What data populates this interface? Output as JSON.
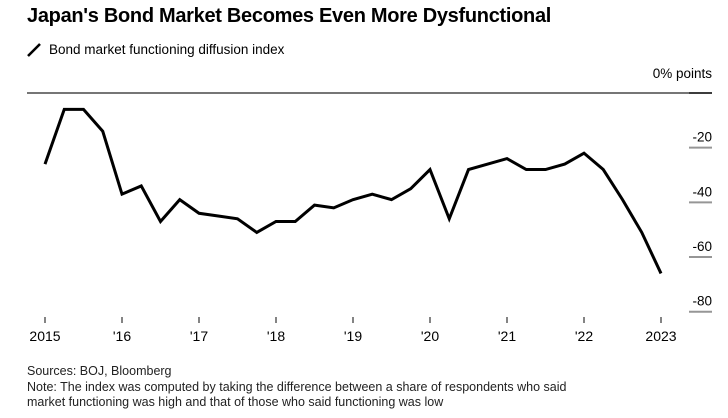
{
  "header": {
    "title": "Japan's Bond Market Becomes Even More Dysfunctional",
    "legend_label": "Bond market functioning diffusion index",
    "unit_label": "0% points"
  },
  "footer": {
    "sources": "Sources: BOJ, Bloomberg",
    "note_line1": "Note: The index was computed by taking the difference between a share of respondents who said",
    "note_line2": "market functioning was high and that of those who said functioning was low"
  },
  "colors": {
    "background": "#ffffff",
    "line": "#000000",
    "zero_line": "#767676",
    "zero_line_tick": "#3c3c3c",
    "y_tick": "#969696",
    "x_tick": "#5a5a5a",
    "axis_text": "#000000",
    "footnote_text": "#222222"
  },
  "chart_data": {
    "type": "line",
    "title": "Japan's Bond Market Becomes Even More Dysfunctional",
    "series_name": "Bond market functioning diffusion index",
    "frequency": "quarterly (BOJ survey: Feb, May, Aug, Nov)",
    "x": [
      "Feb 2015",
      "May 2015",
      "Aug 2015",
      "Nov 2015",
      "Feb 2016",
      "May 2016",
      "Aug 2016",
      "Nov 2016",
      "Feb 2017",
      "May 2017",
      "Aug 2017",
      "Nov 2017",
      "Feb 2018",
      "May 2018",
      "Aug 2018",
      "Nov 2018",
      "Feb 2019",
      "May 2019",
      "Aug 2019",
      "Nov 2019",
      "Feb 2020",
      "May 2020",
      "Aug 2020",
      "Nov 2020",
      "Feb 2021",
      "May 2021",
      "Aug 2021",
      "Nov 2021",
      "Feb 2022",
      "May 2022",
      "Aug 2022",
      "Nov 2022",
      "Feb 2023"
    ],
    "values": [
      -26,
      -6,
      -6,
      -14,
      -37,
      -34,
      -47,
      -39,
      -44,
      -45,
      -46,
      -51,
      -47,
      -47,
      -41,
      -42,
      -39,
      -37,
      -39,
      -35,
      -28,
      -46,
      -28,
      -26,
      -24,
      -28,
      -28,
      -26,
      -22,
      -28,
      -39,
      -51,
      -66
    ],
    "x_axis": {
      "tick_labels": [
        "2015",
        "'16",
        "'17",
        "'18",
        "'19",
        "'20",
        "'21",
        "'22",
        "2023"
      ]
    },
    "y_axis": {
      "unit": "% points",
      "tick_labels": [
        "0% points",
        "-20",
        "-40",
        "-60",
        "-80"
      ],
      "ticks": [
        0,
        -20,
        -40,
        -60,
        -80
      ],
      "range": [
        -84,
        0
      ],
      "side": "right"
    },
    "grid": "none (solid zero line across top only)",
    "legend_position": "top-left"
  }
}
